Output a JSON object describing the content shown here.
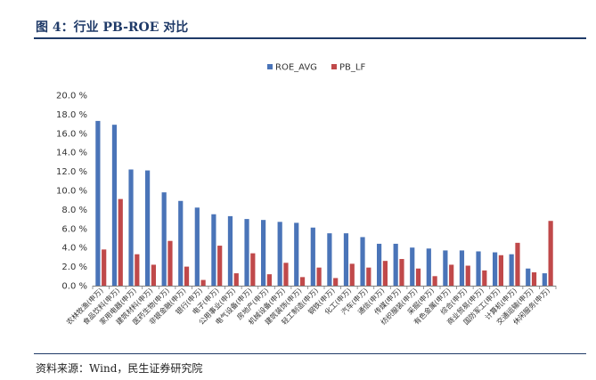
{
  "figure": {
    "title": "图 4：行业 PB-ROE 对比",
    "source": "资料来源：Wind，民生证券研究院"
  },
  "colors": {
    "roe": "#4a74b8",
    "pb": "#c0494a",
    "rule": "#1f3a68"
  },
  "chart_data": {
    "type": "bar",
    "title": "",
    "xlabel": "",
    "ylabel": "",
    "ylim": [
      0,
      20
    ],
    "yticks": [
      "0.0 %",
      "2.0 %",
      "4.0 %",
      "6.0 %",
      "8.0 %",
      "10.0 %",
      "12.0 %",
      "14.0 %",
      "16.0 %",
      "18.0 %",
      "20.0 %"
    ],
    "grid": false,
    "legend": "top-center",
    "categories": [
      "农林牧渔(申万)",
      "食品饮料(申万)",
      "家用电器(申万)",
      "建筑材料(申万)",
      "医药生物(申万)",
      "非银金融(申万)",
      "银行(申万)",
      "电子(申万)",
      "公用事业(申万)",
      "电气设备(申万)",
      "房地产(申万)",
      "机械设备(申万)",
      "建筑装饰(申万)",
      "轻工制造(申万)",
      "钢铁(申万)",
      "化工(申万)",
      "汽车(申万)",
      "通信(申万)",
      "传媒(申万)",
      "纺织服装(申万)",
      "采掘(申万)",
      "有色金属(申万)",
      "综合(申万)",
      "商业贸易(申万)",
      "国防军工(申万)",
      "计算机(申万)",
      "交通运输(申万)",
      "休闲服务(申万)"
    ],
    "series": [
      {
        "name": "ROE_AVG",
        "values": [
          17.3,
          16.9,
          12.2,
          12.1,
          9.8,
          8.9,
          8.2,
          7.5,
          7.3,
          7.0,
          6.9,
          6.7,
          6.6,
          6.1,
          5.5,
          5.5,
          5.1,
          4.4,
          4.4,
          4.0,
          3.9,
          3.7,
          3.7,
          3.6,
          3.5,
          3.3,
          1.8,
          1.3
        ]
      },
      {
        "name": "PB_LF",
        "values": [
          3.8,
          9.1,
          3.3,
          2.2,
          4.7,
          2.0,
          0.6,
          4.2,
          1.3,
          3.4,
          1.2,
          2.4,
          0.9,
          1.9,
          0.8,
          2.3,
          1.9,
          2.6,
          2.8,
          1.8,
          1.0,
          2.2,
          2.1,
          1.6,
          3.2,
          4.5,
          1.4,
          6.8
        ]
      }
    ]
  }
}
